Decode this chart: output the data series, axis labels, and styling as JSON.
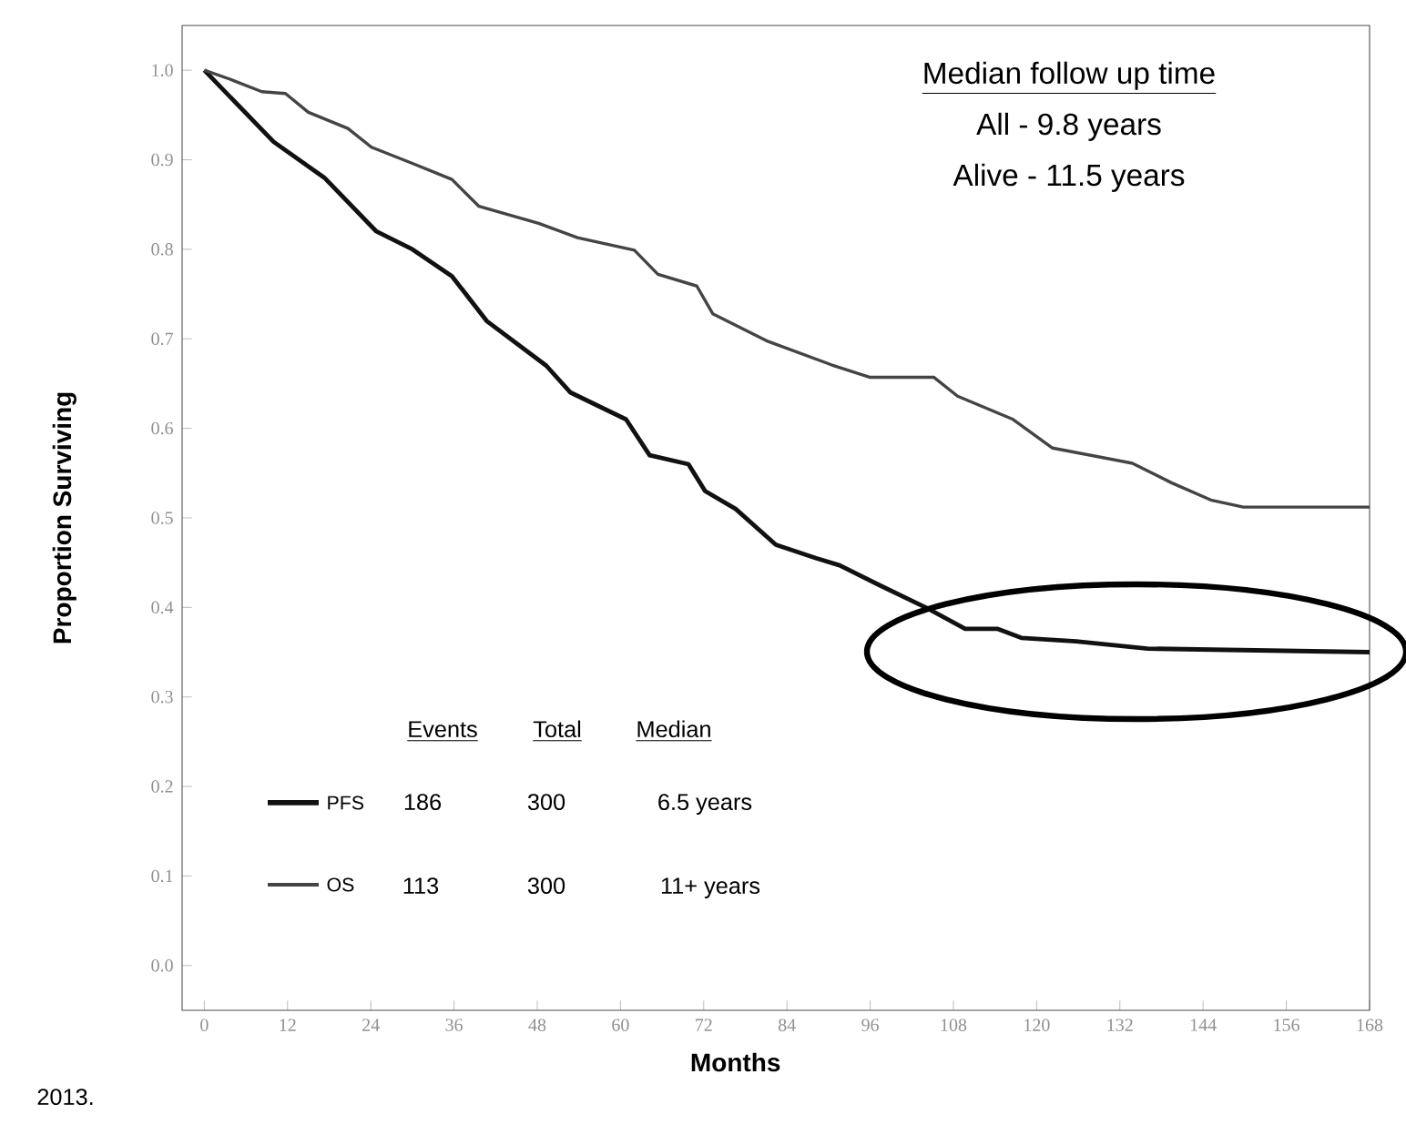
{
  "chart_data": {
    "type": "line",
    "xlabel": "Months",
    "ylabel": "Proportion Surviving",
    "xlim": [
      -3.2,
      168
    ],
    "ylim": [
      -0.05,
      1.05
    ],
    "xticks": [
      0,
      12,
      24,
      36,
      48,
      60,
      72,
      84,
      96,
      108,
      120,
      132,
      144,
      156,
      168
    ],
    "yticks": [
      {
        "value": 0,
        "label": "0.0"
      },
      0.1,
      0.2,
      0.3,
      0.4,
      0.5,
      0.6,
      0.7,
      0.8,
      0.9,
      {
        "value": 1,
        "label": "1.0"
      }
    ],
    "legend": "bottom left",
    "series": [
      {
        "name": "PFS",
        "color": "#111111",
        "x": [
          0,
          10,
          17.3,
          24.8,
          30,
          35.7,
          40.7,
          49.3,
          52.8,
          60.8,
          64.2,
          69.8,
          72.2,
          76.6,
          82.4,
          88.2,
          91.6,
          97.3,
          104,
          109.7,
          114.4,
          117.8,
          125.7,
          136,
          168
        ],
        "values": [
          1.0,
          0.92,
          0.88,
          0.82,
          0.8,
          0.77,
          0.72,
          0.67,
          0.64,
          0.61,
          0.57,
          0.56,
          0.53,
          0.51,
          0.47,
          0.455,
          0.447,
          0.425,
          0.4,
          0.376,
          0.376,
          0.366,
          0.362,
          0.354,
          0.35
        ]
      },
      {
        "name": "OS",
        "color": "#444444",
        "x": [
          0,
          3.7,
          8.3,
          11.7,
          15,
          20.7,
          24.1,
          30,
          35.7,
          39.6,
          48.2,
          53.8,
          62,
          65.4,
          71,
          73.3,
          81.3,
          90.4,
          96,
          105.2,
          108.6,
          116.6,
          122.3,
          133.8,
          139.5,
          145.1,
          149.8,
          168
        ],
        "values": [
          1.0,
          0.99,
          0.976,
          0.974,
          0.953,
          0.935,
          0.914,
          0.896,
          0.878,
          0.848,
          0.829,
          0.813,
          0.799,
          0.772,
          0.759,
          0.728,
          0.697,
          0.671,
          0.657,
          0.657,
          0.636,
          0.61,
          0.578,
          0.561,
          0.539,
          0.52,
          0.512,
          0.512
        ]
      }
    ],
    "annotations": [
      "Median follow up time",
      "All    -      9.8 years",
      "Alive -   11.5 years",
      "Events",
      "Total",
      "Median",
      "186",
      "300",
      "6.5 years",
      "113",
      "300",
      "11+ years",
      "2013."
    ]
  }
}
